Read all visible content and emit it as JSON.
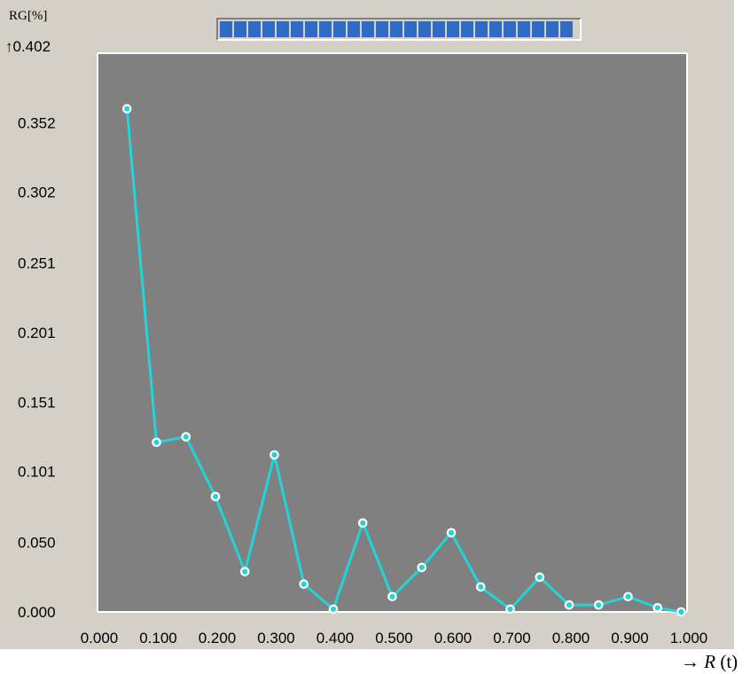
{
  "chart_data": {
    "type": "line",
    "ylabel": "RG[%]",
    "ylabel_top_tick": "↑0.402",
    "xlabel_arrow": "→",
    "xlabel_symbol": "R",
    "xlabel_arg": "(t)",
    "x_ticks": [
      "0.000",
      "0.100",
      "0.200",
      "0.300",
      "0.400",
      "0.500",
      "0.600",
      "0.700",
      "0.800",
      "0.900",
      "1.000"
    ],
    "y_ticks": [
      "0.000",
      "0.050",
      "0.101",
      "0.151",
      "0.201",
      "0.251",
      "0.302",
      "0.352"
    ],
    "y_tick_values": [
      0.0,
      0.05,
      0.101,
      0.151,
      0.201,
      0.251,
      0.302,
      0.352
    ],
    "xlim": [
      0,
      1
    ],
    "ylim": [
      0,
      0.402
    ],
    "x": [
      0.05,
      0.1,
      0.15,
      0.2,
      0.25,
      0.3,
      0.35,
      0.4,
      0.45,
      0.5,
      0.55,
      0.6,
      0.65,
      0.7,
      0.75,
      0.8,
      0.85,
      0.9,
      0.95,
      0.99
    ],
    "values": [
      0.362,
      0.122,
      0.126,
      0.083,
      0.029,
      0.113,
      0.02,
      0.002,
      0.064,
      0.011,
      0.032,
      0.057,
      0.018,
      0.002,
      0.025,
      0.005,
      0.005,
      0.011,
      0.003,
      0.0
    ],
    "line_color": "#22d3d8",
    "marker_color": "#ffffff",
    "plot_background": "#808080",
    "grid": false
  },
  "progress": {
    "fraction": 1.0,
    "color": "#316ac5"
  }
}
